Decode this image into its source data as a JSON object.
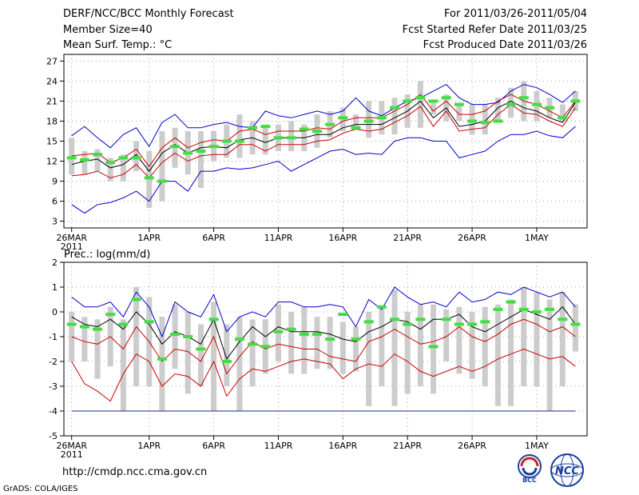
{
  "header": {
    "title": "DERF/NCC/BCC Monthly Forecast",
    "member_size": "Member Size=40",
    "variable": "Mean Surf. Temp.: °C",
    "period": "For 2011/03/26-2011/05/04",
    "start_ref": "Fcst Started Refer Date 2011/03/25",
    "produced": "Fcst Produced Date 2011/03/26"
  },
  "footer": {
    "url": "http://cmdp.ncc.cma.gov.cn",
    "credit": "GrADS: COLA/IGES",
    "logo_bcc": "BCC",
    "logo_ncc": "NCC"
  },
  "colors": {
    "ensemble_mean": "#000000",
    "quartile_band": "#cc0000",
    "extreme_band": "#0000cc",
    "member_range": "#cccccc",
    "observation_mark": "#44dd44",
    "lower_floor": "#4455aa"
  },
  "chart_data": [
    {
      "type": "line",
      "title": "Mean Surf. Temp.: °C",
      "ylim": [
        2,
        28
      ],
      "yticks": [
        3,
        6,
        9,
        12,
        15,
        18,
        21,
        24,
        27
      ],
      "x_tick_labels": [
        "26MAR",
        "1APR",
        "6APR",
        "11APR",
        "16APR",
        "21APR",
        "26APR",
        "1MAY"
      ],
      "x_tick_days": [
        1,
        7,
        12,
        17,
        22,
        27,
        32,
        37
      ],
      "year_label": "2011",
      "x": [
        1,
        2,
        3,
        4,
        5,
        6,
        7,
        8,
        9,
        10,
        11,
        12,
        13,
        14,
        15,
        16,
        17,
        18,
        19,
        20,
        21,
        22,
        23,
        24,
        25,
        26,
        27,
        28,
        29,
        30,
        31,
        32,
        33,
        34,
        35,
        36,
        37,
        38,
        39,
        40
      ],
      "series": [
        {
          "name": "maximum",
          "values": [
            15.8,
            17.2,
            15.5,
            14.0,
            16.0,
            17.0,
            14.2,
            17.8,
            19.0,
            17.0,
            17.0,
            17.5,
            17.8,
            17.2,
            17.0,
            19.5,
            18.8,
            18.5,
            19.0,
            19.5,
            19.0,
            19.5,
            21.5,
            19.5,
            18.8,
            20.0,
            21.0,
            21.5,
            22.5,
            23.5,
            21.5,
            20.5,
            20.5,
            20.8,
            22.5,
            23.5,
            23.0,
            22.0,
            20.8,
            22.5
          ]
        },
        {
          "name": "upper_quartile",
          "values": [
            12.8,
            13.0,
            13.2,
            11.8,
            12.5,
            13.8,
            11.2,
            14.0,
            15.5,
            14.0,
            14.8,
            15.2,
            15.0,
            16.5,
            16.8,
            16.0,
            16.5,
            16.5,
            16.5,
            17.0,
            16.8,
            18.0,
            18.5,
            18.5,
            18.5,
            19.5,
            20.5,
            22.0,
            19.5,
            21.0,
            19.0,
            19.0,
            19.5,
            21.0,
            22.0,
            21.0,
            20.5,
            19.5,
            18.5,
            21.0
          ]
        },
        {
          "name": "mean",
          "values": [
            11.5,
            12.0,
            12.3,
            11.0,
            11.5,
            13.0,
            10.5,
            13.2,
            14.5,
            13.2,
            14.0,
            14.2,
            14.0,
            15.2,
            15.5,
            14.8,
            15.5,
            15.5,
            15.5,
            16.0,
            16.0,
            17.0,
            17.5,
            17.5,
            17.5,
            18.5,
            19.5,
            21.0,
            18.5,
            20.0,
            17.2,
            17.5,
            18.0,
            20.0,
            21.0,
            20.0,
            19.5,
            18.5,
            17.8,
            20.8
          ]
        },
        {
          "name": "lower_quartile",
          "values": [
            9.8,
            10.0,
            10.5,
            9.5,
            10.0,
            11.5,
            9.5,
            11.8,
            13.2,
            12.0,
            12.8,
            13.0,
            13.0,
            14.5,
            14.5,
            13.5,
            14.5,
            14.5,
            14.5,
            15.0,
            15.2,
            16.2,
            16.8,
            16.5,
            16.8,
            17.8,
            18.8,
            20.2,
            17.2,
            19.5,
            16.5,
            16.8,
            17.0,
            19.0,
            20.5,
            19.2,
            19.0,
            18.0,
            17.2,
            20.0
          ]
        },
        {
          "name": "minimum",
          "values": [
            5.5,
            4.2,
            5.5,
            5.8,
            6.5,
            7.5,
            6.0,
            9.0,
            9.0,
            7.5,
            10.5,
            10.5,
            11.0,
            10.8,
            11.0,
            11.5,
            12.0,
            10.5,
            11.5,
            12.5,
            13.5,
            13.8,
            13.0,
            13.2,
            13.0,
            15.0,
            15.5,
            15.5,
            15.0,
            15.0,
            12.5,
            13.0,
            13.5,
            15.0,
            16.0,
            16.0,
            16.5,
            15.8,
            15.5,
            17.2
          ]
        },
        {
          "name": "member_range_top",
          "values": [
            15.5,
            13.5,
            13.8,
            12.5,
            13.0,
            15.0,
            13.5,
            16.5,
            17.0,
            16.5,
            16.5,
            16.5,
            17.5,
            19.0,
            18.0,
            17.5,
            17.5,
            18.0,
            17.5,
            19.0,
            19.5,
            20.0,
            19.0,
            21.0,
            21.0,
            21.5,
            22.0,
            24.0,
            21.0,
            22.0,
            20.5,
            20.5,
            20.5,
            21.5,
            23.0,
            24.0,
            22.5,
            21.5,
            20.5,
            22.5
          ]
        },
        {
          "name": "member_range_bottom",
          "values": [
            10.0,
            10.0,
            10.5,
            9.0,
            9.0,
            10.5,
            5.0,
            6.0,
            11.0,
            10.0,
            8.0,
            12.0,
            12.5,
            12.5,
            13.0,
            13.0,
            13.5,
            13.5,
            13.5,
            14.0,
            15.5,
            16.5,
            17.0,
            15.5,
            16.0,
            16.0,
            17.0,
            17.0,
            19.0,
            18.0,
            18.0,
            16.0,
            16.0,
            18.0,
            18.5,
            18.0,
            18.0,
            18.5,
            18.0,
            19.5
          ]
        },
        {
          "name": "observed",
          "values": [
            12.5,
            12.2,
            13.0,
            11.8,
            12.5,
            12.5,
            9.5,
            9.0,
            14.2,
            13.2,
            13.5,
            14.2,
            15.0,
            15.0,
            17.0,
            17.2,
            15.5,
            15.5,
            16.8,
            16.5,
            17.5,
            18.5,
            17.0,
            18.0,
            18.5,
            20.0,
            21.0,
            21.5,
            21.0,
            21.5,
            20.5,
            18.0,
            17.8,
            18.0,
            20.5,
            21.5,
            20.5,
            20.0,
            18.5,
            21.0
          ]
        }
      ]
    },
    {
      "type": "line",
      "title": "Prec.: log(mm/d)",
      "ylim": [
        -5,
        2
      ],
      "yticks": [
        -5,
        -4,
        -3,
        -2,
        -1,
        0,
        1,
        2
      ],
      "x_tick_labels": [
        "26MAR",
        "1APR",
        "6APR",
        "11APR",
        "16APR",
        "21APR",
        "26APR",
        "1MAY"
      ],
      "x_tick_days": [
        1,
        7,
        12,
        17,
        22,
        27,
        32,
        37
      ],
      "year_label": "2011",
      "x": [
        1,
        2,
        3,
        4,
        5,
        6,
        7,
        8,
        9,
        10,
        11,
        12,
        13,
        14,
        15,
        16,
        17,
        18,
        19,
        20,
        21,
        22,
        23,
        24,
        25,
        26,
        27,
        28,
        29,
        30,
        31,
        32,
        33,
        34,
        35,
        36,
        37,
        38,
        39,
        40
      ],
      "series": [
        {
          "name": "maximum",
          "values": [
            0.6,
            0.2,
            0.2,
            0.4,
            -0.2,
            0.8,
            0.2,
            -1.0,
            0.4,
            0.0,
            -0.2,
            0.7,
            -0.8,
            -0.2,
            0.0,
            -0.2,
            0.4,
            0.4,
            0.2,
            0.2,
            0.3,
            0.2,
            -0.6,
            0.5,
            0.1,
            1.0,
            0.6,
            0.3,
            0.4,
            0.2,
            0.8,
            0.4,
            0.5,
            0.8,
            0.7,
            1.0,
            0.8,
            0.6,
            0.8,
            0.2
          ]
        },
        {
          "name": "mean",
          "values": [
            -0.2,
            -0.5,
            -0.6,
            -0.3,
            -0.7,
            0.0,
            -0.5,
            -1.3,
            -0.8,
            -1.0,
            -1.3,
            -0.3,
            -1.9,
            -1.2,
            -0.6,
            -1.0,
            -0.6,
            -0.8,
            -0.8,
            -0.8,
            -0.9,
            -1.1,
            -1.2,
            -0.8,
            -0.6,
            -0.3,
            -0.4,
            -0.7,
            -0.3,
            -0.3,
            -0.1,
            -0.6,
            -0.8,
            -0.5,
            -0.2,
            0.1,
            -0.1,
            -0.3,
            0.2,
            -0.5
          ]
        },
        {
          "name": "quartile_band",
          "values": [
            -1.0,
            -1.2,
            -1.3,
            -1.0,
            -1.5,
            -0.6,
            -1.2,
            -2.0,
            -1.5,
            -1.6,
            -2.0,
            -1.0,
            -2.5,
            -1.8,
            -1.2,
            -1.5,
            -1.3,
            -1.4,
            -1.5,
            -1.5,
            -1.8,
            -1.9,
            -2.0,
            -1.2,
            -1.0,
            -0.7,
            -1.0,
            -1.3,
            -1.2,
            -1.0,
            -0.6,
            -1.0,
            -1.2,
            -0.9,
            -0.5,
            -0.3,
            -0.5,
            -0.8,
            -0.6,
            -1.0
          ]
        },
        {
          "name": "minimum",
          "values": [
            -2.0,
            -2.9,
            -3.2,
            -3.6,
            -2.5,
            -1.7,
            -2.0,
            -3.0,
            -2.5,
            -2.6,
            -3.0,
            -2.0,
            -3.4,
            -2.7,
            -2.3,
            -2.4,
            -2.2,
            -2.0,
            -1.9,
            -2.0,
            -2.1,
            -2.7,
            -2.3,
            -2.1,
            -2.2,
            -1.7,
            -2.0,
            -2.4,
            -2.6,
            -2.4,
            -2.2,
            -2.4,
            -2.2,
            -1.9,
            -1.7,
            -1.5,
            -1.7,
            -1.9,
            -1.8,
            -2.2
          ]
        },
        {
          "name": "floor",
          "values": [
            -4.0,
            -4.0,
            -4.0,
            -4.0,
            -4.0,
            -4.0,
            -4.0,
            -4.0,
            -4.0,
            -4.0,
            -4.0,
            -4.0,
            -4.0,
            -4.0,
            -4.0,
            -4.0,
            -4.0,
            -4.0,
            -4.0,
            -4.0,
            -4.0,
            -4.0,
            -4.0,
            -4.0,
            -4.0,
            -4.0,
            -4.0,
            -4.0,
            -4.0,
            -4.0,
            -4.0,
            -4.0,
            -4.0,
            -4.0,
            -4.0,
            -4.0,
            -4.0,
            -4.0,
            -4.0,
            -4.0
          ]
        },
        {
          "name": "member_range_top",
          "values": [
            0.0,
            -0.2,
            -0.3,
            0.2,
            -0.3,
            1.0,
            0.6,
            -0.2,
            0.3,
            0.0,
            -0.5,
            0.4,
            -0.5,
            -0.2,
            -0.3,
            -0.3,
            0.3,
            0.0,
            0.2,
            -0.2,
            -0.2,
            -0.4,
            -0.6,
            0.0,
            0.2,
            0.9,
            0.0,
            0.3,
            0.3,
            0.1,
            0.2,
            0.0,
            0.2,
            0.3,
            0.5,
            1.0,
            0.8,
            0.5,
            0.8,
            0.3
          ]
        },
        {
          "name": "member_range_bottom",
          "values": [
            -2.0,
            -2.0,
            -2.7,
            -2.2,
            -4.0,
            -3.0,
            -3.0,
            -4.0,
            -2.3,
            -3.3,
            -3.0,
            -4.0,
            -3.0,
            -4.0,
            -3.0,
            -2.5,
            -2.0,
            -2.5,
            -2.5,
            -2.3,
            -2.3,
            -2.5,
            -2.4,
            -3.8,
            -3.0,
            -3.8,
            -3.3,
            -3.0,
            -3.3,
            -2.0,
            -2.5,
            -2.7,
            -3.0,
            -3.8,
            -3.8,
            -3.0,
            -3.0,
            -4.0,
            -3.0,
            -1.6
          ]
        },
        {
          "name": "observed",
          "values": [
            -0.5,
            -0.6,
            -0.7,
            -0.1,
            -0.5,
            0.5,
            -0.4,
            -1.9,
            -0.9,
            -1.0,
            -1.5,
            -0.3,
            -2.0,
            -1.1,
            -1.3,
            -1.4,
            -0.8,
            -0.7,
            -0.9,
            -0.9,
            -1.1,
            -0.1,
            -1.1,
            -0.4,
            0.2,
            -0.3,
            -0.5,
            -0.3,
            -1.4,
            -0.3,
            -0.5,
            -0.5,
            -0.4,
            0.1,
            0.4,
            0.1,
            0.0,
            0.1,
            -0.3,
            -0.5
          ]
        }
      ]
    }
  ]
}
